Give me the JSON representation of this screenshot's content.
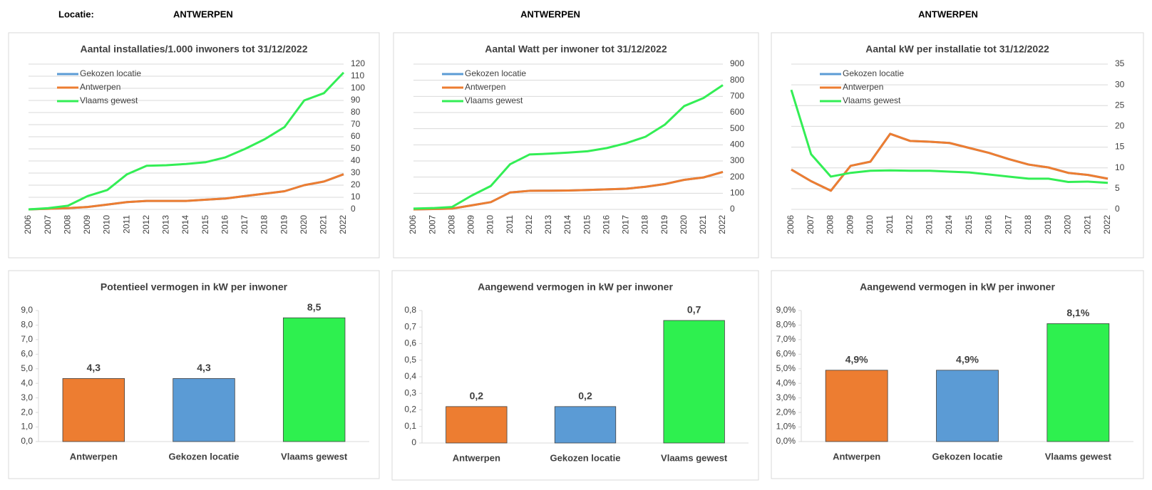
{
  "header": {
    "label": "Locatie:",
    "locations": [
      "ANTWERPEN",
      "ANTWERPEN",
      "ANTWERPEN"
    ]
  },
  "chart_data": [
    {
      "type": "line",
      "title": "Aantal installaties/1.000  inwoners tot 31/12/2022",
      "categories": [
        "2006",
        "2007",
        "2008",
        "2009",
        "2010",
        "2011",
        "2012",
        "2013",
        "2014",
        "2015",
        "2016",
        "2017",
        "2018",
        "2019",
        "2020",
        "2021",
        "2022"
      ],
      "series": [
        {
          "name": "Gekozen locatie",
          "color": "#5b9bd5",
          "values": [
            0,
            0.5,
            1,
            2,
            4,
            6,
            7,
            7,
            7,
            8,
            9,
            11,
            13,
            15,
            20,
            23,
            29
          ]
        },
        {
          "name": "Antwerpen",
          "color": "#ed7d31",
          "values": [
            0,
            0.5,
            1,
            2,
            4,
            6,
            7,
            7,
            7,
            8,
            9,
            11,
            13,
            15,
            20,
            23,
            29
          ]
        },
        {
          "name": "Vlaams gewest",
          "color": "#33ee55",
          "values": [
            0,
            1,
            3,
            11,
            16,
            29,
            36,
            36.5,
            37.5,
            39,
            43,
            50,
            58,
            68,
            90,
            96,
            113
          ]
        }
      ],
      "ylim": [
        0,
        120
      ],
      "yticks": [
        0,
        10,
        20,
        30,
        40,
        50,
        60,
        70,
        80,
        90,
        100,
        110,
        120
      ],
      "grid": true
    },
    {
      "type": "line",
      "title": "Aantal Watt per inwoner  tot 31/12/2022",
      "categories": [
        "2006",
        "2007",
        "2008",
        "2009",
        "2010",
        "2011",
        "2012",
        "2013",
        "2014",
        "2015",
        "2016",
        "2017",
        "2018",
        "2019",
        "2020",
        "2021",
        "2022"
      ],
      "series": [
        {
          "name": "Gekozen locatie",
          "color": "#5b9bd5",
          "values": [
            0,
            2,
            5,
            25,
            45,
            105,
            115,
            116,
            117,
            120,
            124,
            128,
            140,
            157,
            183,
            198,
            232
          ]
        },
        {
          "name": "Antwerpen",
          "color": "#ed7d31",
          "values": [
            0,
            2,
            5,
            25,
            45,
            105,
            115,
            116,
            117,
            120,
            124,
            128,
            140,
            157,
            183,
            198,
            232
          ]
        },
        {
          "name": "Vlaams gewest",
          "color": "#33ee55",
          "values": [
            5,
            8,
            15,
            85,
            145,
            280,
            340,
            345,
            352,
            360,
            380,
            410,
            450,
            525,
            640,
            690,
            770
          ]
        }
      ],
      "ylim": [
        0,
        900
      ],
      "yticks": [
        0,
        100,
        200,
        300,
        400,
        500,
        600,
        700,
        800,
        900
      ],
      "grid": true
    },
    {
      "type": "line",
      "title": "Aantal kW per installatie  tot 31/12/2022",
      "categories": [
        "2006",
        "2007",
        "2008",
        "2009",
        "2010",
        "2011",
        "2012",
        "2013",
        "2014",
        "2015",
        "2016",
        "2017",
        "2018",
        "2019",
        "2020",
        "2021",
        "2022"
      ],
      "series": [
        {
          "name": "Gekozen locatie",
          "color": "#5b9bd5",
          "values": [
            9.6,
            6.8,
            4.5,
            10.5,
            11.5,
            18.2,
            16.5,
            16.3,
            16,
            14.8,
            13.6,
            12.1,
            10.8,
            10.1,
            8.8,
            8.3,
            7.4
          ]
        },
        {
          "name": "Antwerpen",
          "color": "#ed7d31",
          "values": [
            9.6,
            6.8,
            4.5,
            10.5,
            11.5,
            18.2,
            16.5,
            16.3,
            16,
            14.8,
            13.6,
            12.1,
            10.8,
            10.1,
            8.8,
            8.3,
            7.4
          ]
        },
        {
          "name": "Vlaams gewest",
          "color": "#33ee55",
          "values": [
            28.8,
            13.3,
            7.9,
            8.8,
            9.3,
            9.4,
            9.3,
            9.3,
            9.1,
            8.9,
            8.4,
            7.9,
            7.4,
            7.4,
            6.6,
            6.7,
            6.4
          ]
        }
      ],
      "ylim": [
        0,
        35
      ],
      "yticks": [
        0,
        5,
        10,
        15,
        20,
        25,
        30,
        35
      ],
      "grid": true
    },
    {
      "type": "bar",
      "title": "Potentieel vermogen in kW per inwoner",
      "categories": [
        "Antwerpen",
        "Gekozen locatie",
        "Vlaams gewest"
      ],
      "values": [
        4.33,
        4.33,
        8.5
      ],
      "value_labels": [
        "4,3",
        "4,3",
        "8,5"
      ],
      "colors": [
        "#ed7d31",
        "#5b9bd5",
        "#2ef04f"
      ],
      "ylim": [
        0,
        9
      ],
      "yticks": [
        {
          "value": 0,
          "label": "0,0"
        },
        {
          "value": 1,
          "label": "1,0"
        },
        {
          "value": 2,
          "label": "2,0"
        },
        {
          "value": 3,
          "label": "3,0"
        },
        {
          "value": 4,
          "label": "4,0"
        },
        {
          "value": 5,
          "label": "5,0"
        },
        {
          "value": 6,
          "label": "6,0"
        },
        {
          "value": 7,
          "label": "7,0"
        },
        {
          "value": 8,
          "label": "8,0"
        },
        {
          "value": 9,
          "label": "9,0"
        }
      ]
    },
    {
      "type": "bar",
      "title": "Aangewend vermogen in kW per inwoner",
      "categories": [
        "Antwerpen",
        "Gekozen locatie",
        "Vlaams gewest"
      ],
      "values": [
        0.22,
        0.22,
        0.74
      ],
      "value_labels": [
        "0,2",
        "0,2",
        "0,7"
      ],
      "colors": [
        "#ed7d31",
        "#5b9bd5",
        "#2ef04f"
      ],
      "ylim": [
        0,
        0.8
      ],
      "yticks": [
        {
          "value": 0,
          "label": "0"
        },
        {
          "value": 0.1,
          "label": "0,1"
        },
        {
          "value": 0.2,
          "label": "0,2"
        },
        {
          "value": 0.3,
          "label": "0,3"
        },
        {
          "value": 0.4,
          "label": "0,4"
        },
        {
          "value": 0.5,
          "label": "0,5"
        },
        {
          "value": 0.6,
          "label": "0,6"
        },
        {
          "value": 0.7,
          "label": "0,7"
        },
        {
          "value": 0.8,
          "label": "0,8"
        }
      ]
    },
    {
      "type": "bar",
      "title": "Aangewend vermogen in kW per inwoner",
      "categories": [
        "Antwerpen",
        "Gekozen locatie",
        "Vlaams gewest"
      ],
      "values": [
        4.9,
        4.9,
        8.1
      ],
      "value_labels": [
        "4,9%",
        "4,9%",
        "8,1%"
      ],
      "colors": [
        "#ed7d31",
        "#5b9bd5",
        "#2ef04f"
      ],
      "ylim": [
        0,
        9
      ],
      "yticks": [
        {
          "value": 0,
          "label": "0,0%"
        },
        {
          "value": 1,
          "label": "1,0%"
        },
        {
          "value": 2,
          "label": "2,0%"
        },
        {
          "value": 3,
          "label": "3,0%"
        },
        {
          "value": 4,
          "label": "4,0%"
        },
        {
          "value": 5,
          "label": "5,0%"
        },
        {
          "value": 6,
          "label": "6,0%"
        },
        {
          "value": 7,
          "label": "7,0%"
        },
        {
          "value": 8,
          "label": "8,0%"
        },
        {
          "value": 9,
          "label": "9,0%"
        }
      ]
    }
  ]
}
